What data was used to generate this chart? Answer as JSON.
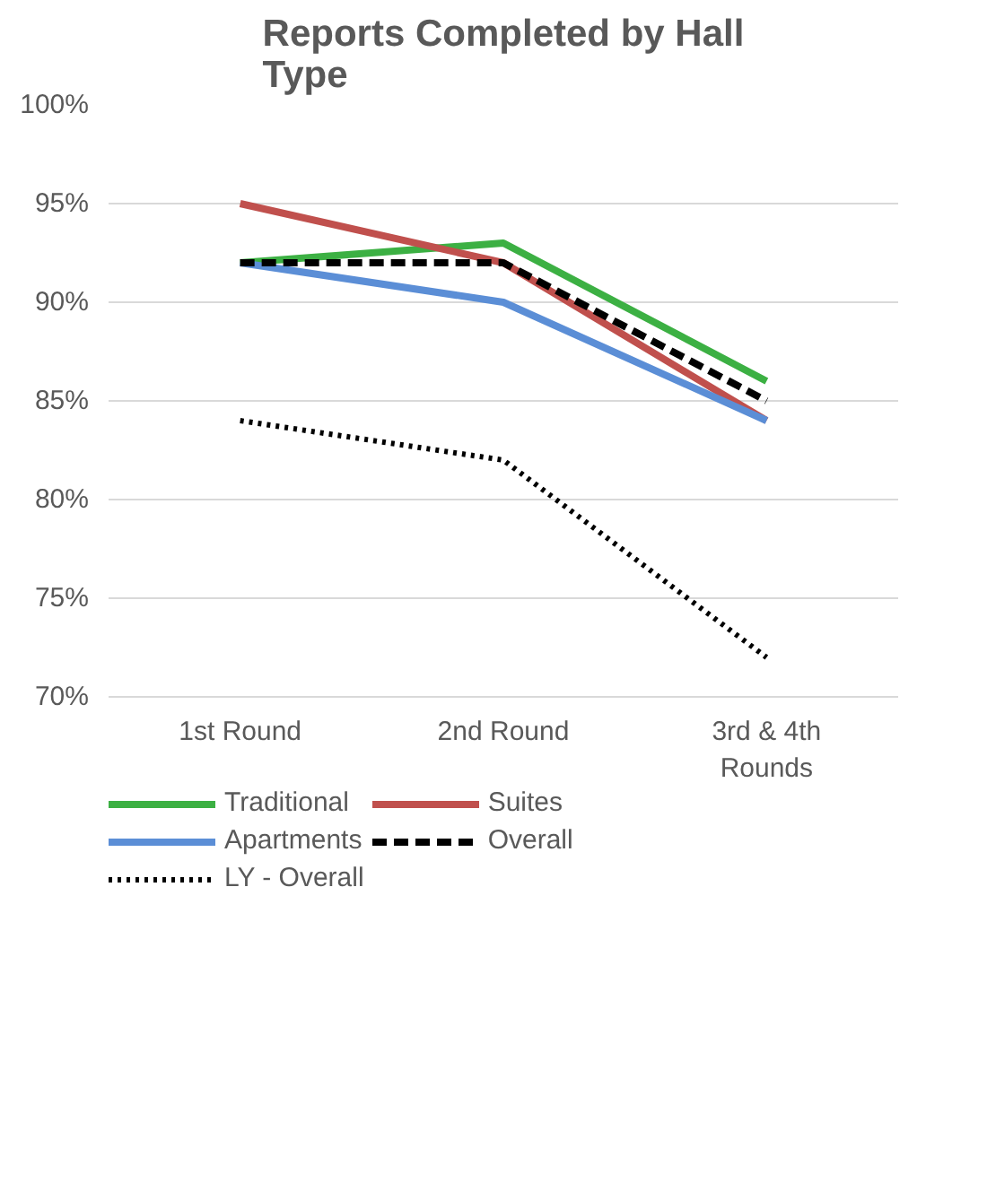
{
  "chart_data": {
    "type": "line",
    "title": "Reports Completed by Hall Type",
    "categories": [
      "1st Round",
      "2nd Round",
      "3rd & 4th Rounds"
    ],
    "ylim": [
      70,
      100
    ],
    "yticks": [
      {
        "value": 70,
        "label": "70%"
      },
      {
        "value": 75,
        "label": "75%"
      },
      {
        "value": 80,
        "label": "80%"
      },
      {
        "value": 85,
        "label": "85%"
      },
      {
        "value": 90,
        "label": "90%"
      },
      {
        "value": 95,
        "label": "95%"
      },
      {
        "value": 100,
        "label": "100%"
      }
    ],
    "grid": "y",
    "legend": "bottom",
    "series": [
      {
        "name": "Traditional",
        "color": "#3cb043",
        "values": [
          92,
          93,
          86
        ],
        "line_style": "solid"
      },
      {
        "name": "Suites",
        "color": "#c0504d",
        "values": [
          95,
          92,
          84
        ],
        "line_style": "solid"
      },
      {
        "name": "Apartments",
        "color": "#5b8ed6",
        "values": [
          92,
          90,
          84
        ],
        "line_style": "solid"
      },
      {
        "name": "Overall",
        "color": "#000000",
        "values": [
          92,
          92,
          85
        ],
        "line_style": "dashed"
      },
      {
        "name": "LY - Overall",
        "color": "#000000",
        "values": [
          84,
          82,
          72
        ],
        "line_style": "dotted"
      }
    ]
  }
}
